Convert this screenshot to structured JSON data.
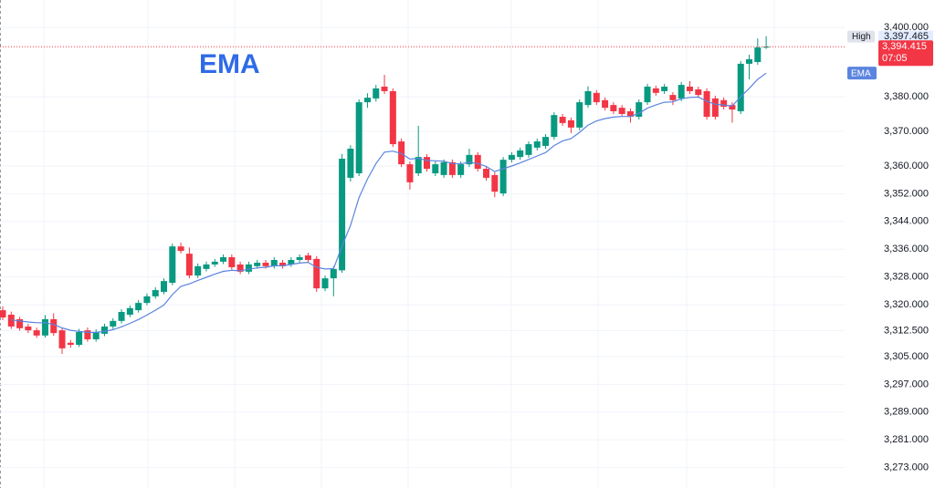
{
  "chart_data": {
    "type": "candlestick",
    "annotation": "EMA",
    "up_color": "#089981",
    "down_color": "#f23645",
    "grid": true,
    "ylim": [
      3267.1,
      3407.9
    ],
    "yticks": [
      {
        "value": 3273,
        "label": "3,273.000"
      },
      {
        "value": 3281,
        "label": "3,281.000"
      },
      {
        "value": 3289,
        "label": "3,289.000"
      },
      {
        "value": 3297,
        "label": "3,297.000"
      },
      {
        "value": 3305,
        "label": "3,305.000"
      },
      {
        "value": 3312.5,
        "label": "3,312.500"
      },
      {
        "value": 3320,
        "label": "3,320.000"
      },
      {
        "value": 3328,
        "label": "3,328.000"
      },
      {
        "value": 3336,
        "label": "3,336.000"
      },
      {
        "value": 3344,
        "label": "3,344.000"
      },
      {
        "value": 3352,
        "label": "3,352.000"
      },
      {
        "value": 3360,
        "label": "3,360.000"
      },
      {
        "value": 3370,
        "label": "3,370.000"
      },
      {
        "value": 3380,
        "label": "3,380.000"
      },
      {
        "value": 3400,
        "label": "3,400.000"
      }
    ],
    "open": [
      3318.4,
      3317.1,
      3315.8,
      3313.7,
      3312.6,
      3311.1,
      3315.8,
      3312.6,
      3309.0,
      3308.4,
      3312.6,
      3310.0,
      3311.6,
      3313.7,
      3315.3,
      3317.1,
      3318.4,
      3320.5,
      3322.4,
      3323.7,
      3326.3,
      3336.8,
      3334.7,
      3328.4,
      3330.3,
      3331.6,
      3332.4,
      3333.7,
      3331.6,
      3329.5,
      3331.1,
      3332.1,
      3331.1,
      3332.1,
      3331.6,
      3332.9,
      3334.2,
      3333.2,
      3324.7,
      3327.6,
      3329.9,
      3356.6,
      3357.9,
      3378.4,
      3379.5,
      3382.9,
      3381.6,
      3367.1,
      3360.5,
      3357.9,
      3362.6,
      3357.9,
      3357.4,
      3361.1,
      3357.4,
      3360.5,
      3363.2,
      3359.2,
      3357.4,
      3352.1,
      3361.8,
      3362.6,
      3363.2,
      3365.3,
      3365.8,
      3368.4,
      3374.2,
      3373.2,
      3371.1,
      3377.6,
      3381.1,
      3379.0,
      3377.6,
      3376.8,
      3375.8,
      3374.2,
      3378.4,
      3382.4,
      3381.6,
      3380.5,
      3379.5,
      3382.9,
      3382.1,
      3381.6,
      3379.5,
      3379.0,
      3377.6,
      3375.8,
      3389.5,
      3390.0,
      3394.2
    ],
    "high": [
      3319.5,
      3318.0,
      3316.5,
      3314.5,
      3313.4,
      3317.0,
      3317.5,
      3313.4,
      3309.8,
      3313.0,
      3313.4,
      3312.9,
      3314.5,
      3316.1,
      3318.7,
      3319.8,
      3321.3,
      3323.2,
      3325.0,
      3327.6,
      3337.6,
      3337.9,
      3336.5,
      3331.9,
      3332.4,
      3333.2,
      3334.5,
      3334.5,
      3332.4,
      3332.4,
      3332.9,
      3332.9,
      3333.7,
      3332.9,
      3333.7,
      3334.5,
      3335.0,
      3334.0,
      3328.4,
      3331.1,
      3363.5,
      3366.0,
      3379.2,
      3381.0,
      3383.4,
      3386.3,
      3382.4,
      3368.0,
      3361.3,
      3371.6,
      3363.4,
      3361.3,
      3361.9,
      3361.9,
      3361.3,
      3365.0,
      3364.0,
      3360.0,
      3358.2,
      3362.6,
      3364.0,
      3365.3,
      3367.1,
      3367.9,
      3369.2,
      3375.5,
      3375.0,
      3374.0,
      3379.2,
      3383.0,
      3381.9,
      3379.8,
      3378.4,
      3377.6,
      3376.6,
      3379.2,
      3383.7,
      3383.2,
      3383.7,
      3381.3,
      3384.2,
      3384.5,
      3382.9,
      3382.4,
      3380.3,
      3379.8,
      3378.4,
      3390.3,
      3392.1,
      3396.8,
      3397.465
    ],
    "low": [
      3315.5,
      3313.0,
      3312.5,
      3311.8,
      3310.4,
      3310.5,
      3311.0,
      3305.8,
      3307.6,
      3307.8,
      3309.3,
      3309.3,
      3310.9,
      3313.0,
      3314.6,
      3316.4,
      3317.7,
      3319.8,
      3321.7,
      3323.0,
      3325.6,
      3334.8,
      3327.6,
      3327.7,
      3329.6,
      3330.9,
      3331.7,
      3330.1,
      3328.8,
      3328.8,
      3330.4,
      3330.4,
      3330.4,
      3330.4,
      3330.9,
      3332.2,
      3332.2,
      3323.7,
      3323.9,
      3322.4,
      3329.2,
      3355.5,
      3357.1,
      3376.8,
      3378.6,
      3380.8,
      3365.5,
      3359.7,
      3353.2,
      3357.1,
      3358.4,
      3357.1,
      3356.6,
      3356.6,
      3356.6,
      3359.7,
      3358.4,
      3355.8,
      3351.0,
      3351.3,
      3361.0,
      3361.8,
      3362.4,
      3364.5,
      3365.0,
      3367.6,
      3371.6,
      3369.5,
      3370.3,
      3376.8,
      3377.6,
      3376.0,
      3375.0,
      3374.2,
      3372.5,
      3373.4,
      3377.6,
      3380.3,
      3380.8,
      3377.6,
      3378.7,
      3380.8,
      3379.7,
      3373.4,
      3373.4,
      3376.3,
      3372.5,
      3375.0,
      3385.0,
      3389.2,
      3393.8
    ],
    "close": [
      3316.3,
      3313.7,
      3313.2,
      3312.6,
      3311.1,
      3315.8,
      3311.8,
      3307.4,
      3308.4,
      3312.1,
      3310.0,
      3312.1,
      3313.7,
      3315.3,
      3317.9,
      3319.0,
      3320.5,
      3322.4,
      3324.2,
      3326.8,
      3336.8,
      3335.5,
      3328.4,
      3331.1,
      3331.6,
      3332.4,
      3333.7,
      3330.8,
      3329.5,
      3331.6,
      3332.1,
      3331.1,
      3332.9,
      3331.1,
      3332.9,
      3333.7,
      3332.9,
      3324.7,
      3327.6,
      3330.3,
      3362.1,
      3365.0,
      3378.4,
      3379.7,
      3382.4,
      3381.6,
      3366.3,
      3360.5,
      3355.3,
      3362.6,
      3359.2,
      3360.5,
      3361.1,
      3357.4,
      3360.5,
      3363.2,
      3359.2,
      3356.6,
      3352.6,
      3361.8,
      3363.2,
      3364.5,
      3366.3,
      3367.1,
      3368.4,
      3374.7,
      3372.4,
      3371.1,
      3378.4,
      3381.6,
      3378.4,
      3376.8,
      3375.8,
      3375.0,
      3374.2,
      3378.4,
      3382.9,
      3381.1,
      3382.9,
      3379.0,
      3383.4,
      3381.6,
      3380.5,
      3374.2,
      3374.2,
      3377.1,
      3376.3,
      3389.5,
      3390.8,
      3394.2,
      3394.415
    ],
    "series": [
      {
        "name": "EMA",
        "color": "#5b84e0",
        "values": [
          null,
          3315.6,
          3315.3,
          3315.0,
          3314.8,
          3314.8,
          3314.3,
          3313.3,
          3312.6,
          3312.3,
          3312.0,
          3312.0,
          3312.3,
          3312.8,
          3313.6,
          3314.6,
          3315.7,
          3317.0,
          3318.4,
          3319.9,
          3322.9,
          3325.3,
          3326.0,
          3327.0,
          3327.9,
          3328.8,
          3329.6,
          3329.9,
          3329.8,
          3330.2,
          3330.6,
          3330.8,
          3331.2,
          3331.2,
          3331.6,
          3332.0,
          3332.2,
          3330.8,
          3330.3,
          3330.4,
          3336.9,
          3342.9,
          3350.9,
          3356.3,
          3360.7,
          3364.0,
          3364.3,
          3363.6,
          3362.0,
          3362.2,
          3361.6,
          3361.5,
          3361.4,
          3360.7,
          3360.6,
          3361.1,
          3360.7,
          3359.9,
          3358.4,
          3359.2,
          3360.0,
          3360.9,
          3361.9,
          3362.9,
          3363.9,
          3365.9,
          3367.2,
          3367.9,
          3369.7,
          3371.8,
          3373.0,
          3373.7,
          3374.1,
          3374.3,
          3374.3,
          3375.2,
          3376.7,
          3377.6,
          3378.4,
          3378.5,
          3379.4,
          3379.8,
          3379.9,
          3378.7,
          3377.8,
          3377.6,
          3377.3,
          3380.0,
          3382.4,
          3385.0,
          3386.8
        ]
      }
    ],
    "high_marker": {
      "tag": "High",
      "price": {
        "value": 3397.465,
        "label": "3,397.465"
      }
    },
    "last_price": {
      "price": {
        "value": 3394.415,
        "label": "3,394.415"
      },
      "countdown": "07:05"
    }
  }
}
